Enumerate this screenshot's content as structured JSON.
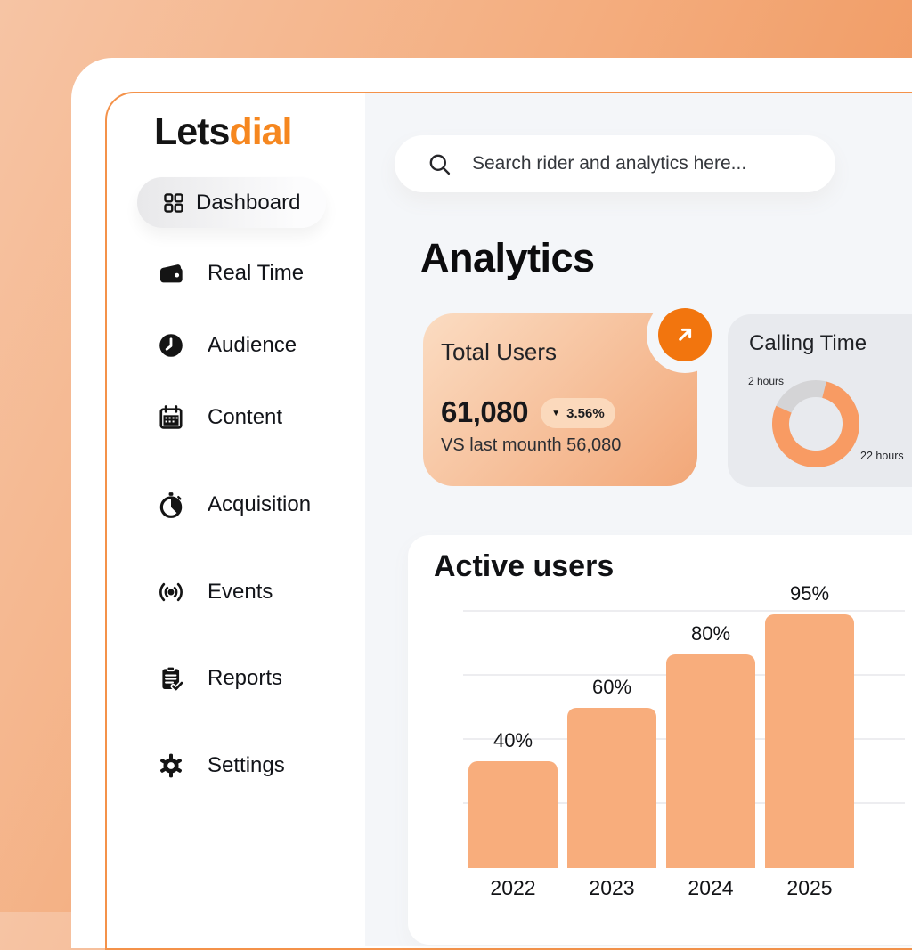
{
  "brand": {
    "lets": "Lets",
    "dial": "dial"
  },
  "sidebar": {
    "items": [
      {
        "label": "Dashboard",
        "icon": "grid-icon",
        "active": true
      },
      {
        "label": "Real Time",
        "icon": "wallet-icon",
        "active": false
      },
      {
        "label": "Audience",
        "icon": "clock-icon",
        "active": false
      },
      {
        "label": "Content",
        "icon": "calendar-icon",
        "active": false
      },
      {
        "label": "Acquisition",
        "icon": "stopwatch-icon",
        "active": false
      },
      {
        "label": "Events",
        "icon": "broadcast-icon",
        "active": false
      },
      {
        "label": "Reports",
        "icon": "clipboard-icon",
        "active": false
      },
      {
        "label": "Settings",
        "icon": "gear-icon",
        "active": false
      }
    ]
  },
  "search": {
    "placeholder": "Search rider and analytics here...",
    "icon": "search-icon"
  },
  "page": {
    "title": "Analytics"
  },
  "cards": {
    "total_users": {
      "title": "Total Users",
      "value": "61,080",
      "delta_icon": "▼",
      "delta": "3.56%",
      "comparison": "VS last mounth 56,080",
      "action_icon": "arrow-up-right-icon"
    },
    "calling_time": {
      "title": "Calling Time",
      "label_small": "2 hours",
      "label_large": "22 hours"
    },
    "active_users": {
      "title": "Active users"
    }
  },
  "colors": {
    "accent": "#f2750e",
    "logo_orange": "#f6871f",
    "border_orange": "#f4924a",
    "main_bg": "#f4f6f9",
    "card_gradient_start": "#fbdcc2",
    "card_gradient_end": "#f2a778"
  },
  "chart_data": [
    {
      "type": "pie",
      "variant": "donut",
      "title": "Calling Time",
      "labels": [
        "2 hours",
        "22 hours"
      ],
      "values": [
        2,
        22
      ],
      "unit": "hours",
      "segment_colors": [
        "#d4d4d6",
        "#f89b63"
      ],
      "legend_position": "data-labels-outside",
      "display": {
        "start_deg": 14,
        "sweep_deg": 280
      }
    },
    {
      "type": "bar",
      "title": "Active users",
      "categories": [
        "2022",
        "2023",
        "2024",
        "2025"
      ],
      "values": [
        40,
        60,
        80,
        95
      ],
      "value_labels": [
        "40%",
        "60%",
        "80%",
        "95%"
      ],
      "xlabel": "",
      "ylabel": "",
      "ylim": [
        0,
        100
      ],
      "grid": true,
      "gridline_count": 4,
      "bar_color": "#f8ad7c",
      "legend_position": "none"
    }
  ]
}
